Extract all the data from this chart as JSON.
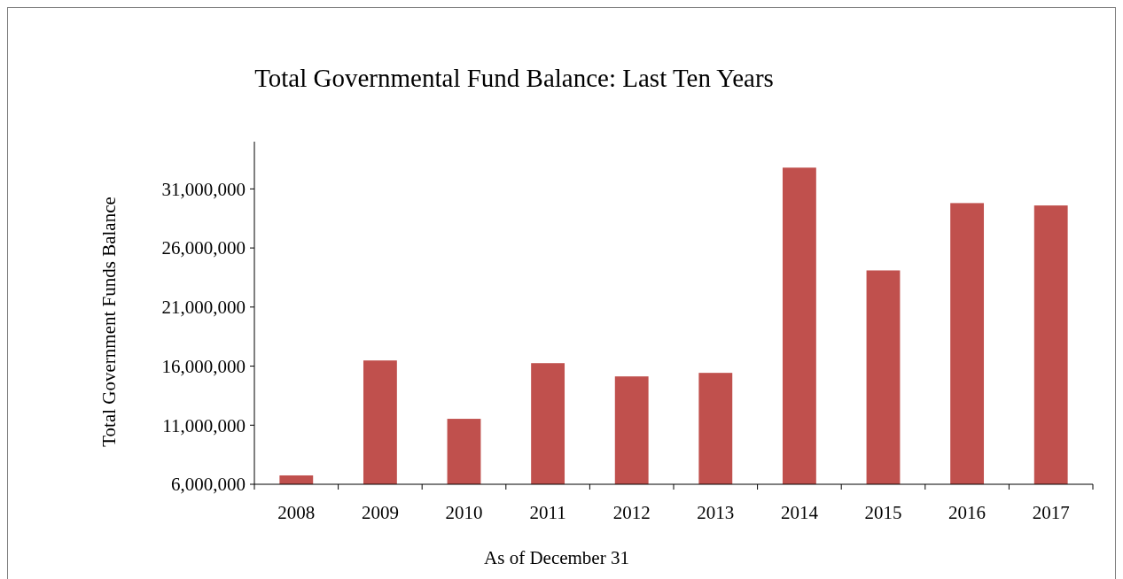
{
  "chart_data": {
    "type": "bar",
    "title": "Total Governmental Fund Balance: Last Ten Years",
    "xlabel": "As of December 31",
    "ylabel": "Total Government Funds Balance",
    "categories": [
      "2008",
      "2009",
      "2010",
      "2011",
      "2012",
      "2013",
      "2014",
      "2015",
      "2016",
      "2017"
    ],
    "values": [
      6750000,
      16480000,
      11540000,
      16250000,
      15130000,
      15430000,
      32800000,
      24100000,
      29800000,
      29600000
    ],
    "color": "#c0504d",
    "ylim": [
      6000000,
      35000000
    ],
    "yticks": [
      {
        "value": 6000000,
        "label": "6,000,000"
      },
      {
        "value": 11000000,
        "label": "11,000,000"
      },
      {
        "value": 16000000,
        "label": "16,000,000"
      },
      {
        "value": 21000000,
        "label": "21,000,000"
      },
      {
        "value": 26000000,
        "label": "26,000,000"
      },
      {
        "value": 31000000,
        "label": "31,000,000"
      }
    ],
    "grid": false
  }
}
